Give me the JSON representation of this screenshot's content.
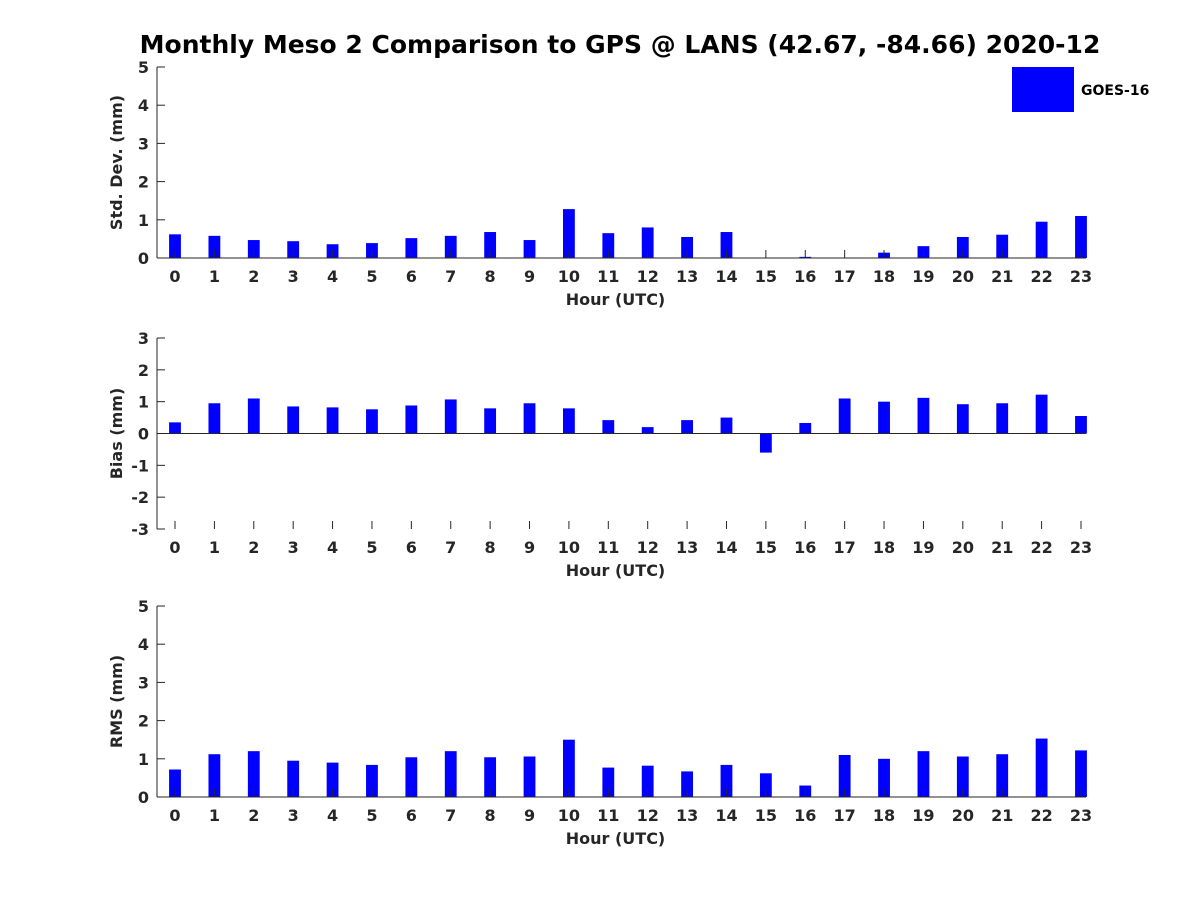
{
  "title": "Monthly Meso 2 Comparison to GPS @ LANS (42.67, -84.66) 2020-12",
  "legend": {
    "label": "GOES-16",
    "placement": "top-right"
  },
  "colors": {
    "bar": "#0000ff",
    "axis": "#262626",
    "title": "#000000"
  },
  "chart_data": [
    {
      "type": "bar",
      "title": "",
      "xlabel": "Hour (UTC)",
      "ylabel": "Std. Dev. (mm)",
      "categories": [
        0,
        1,
        2,
        3,
        4,
        5,
        6,
        7,
        8,
        9,
        10,
        11,
        12,
        13,
        14,
        15,
        16,
        17,
        18,
        19,
        20,
        21,
        22,
        23
      ],
      "series": [
        {
          "name": "GOES-16",
          "values": [
            0.62,
            0.58,
            0.47,
            0.44,
            0.36,
            0.39,
            0.52,
            0.58,
            0.68,
            0.47,
            1.28,
            0.65,
            0.8,
            0.55,
            0.68,
            0.0,
            0.03,
            0.0,
            0.14,
            0.31,
            0.55,
            0.61,
            0.95,
            1.1
          ]
        }
      ],
      "ylim": [
        0,
        5
      ],
      "yticks": [
        0,
        1,
        2,
        3,
        4,
        5
      ],
      "grid": false
    },
    {
      "type": "bar",
      "title": "",
      "xlabel": "Hour (UTC)",
      "ylabel": "Bias (mm)",
      "categories": [
        0,
        1,
        2,
        3,
        4,
        5,
        6,
        7,
        8,
        9,
        10,
        11,
        12,
        13,
        14,
        15,
        16,
        17,
        18,
        19,
        20,
        21,
        22,
        23
      ],
      "series": [
        {
          "name": "GOES-16",
          "values": [
            0.35,
            0.95,
            1.1,
            0.85,
            0.82,
            0.76,
            0.88,
            1.07,
            0.79,
            0.95,
            0.79,
            0.42,
            0.2,
            0.42,
            0.5,
            -0.6,
            0.33,
            1.1,
            1.0,
            1.12,
            0.92,
            0.95,
            1.22,
            0.55
          ]
        }
      ],
      "ylim": [
        -3,
        3
      ],
      "yticks": [
        -3,
        -2,
        -1,
        0,
        1,
        2,
        3
      ],
      "grid": false
    },
    {
      "type": "bar",
      "title": "",
      "xlabel": "Hour (UTC)",
      "ylabel": "RMS (mm)",
      "categories": [
        0,
        1,
        2,
        3,
        4,
        5,
        6,
        7,
        8,
        9,
        10,
        11,
        12,
        13,
        14,
        15,
        16,
        17,
        18,
        19,
        20,
        21,
        22,
        23
      ],
      "series": [
        {
          "name": "GOES-16",
          "values": [
            0.72,
            1.12,
            1.2,
            0.95,
            0.9,
            0.84,
            1.04,
            1.2,
            1.04,
            1.06,
            1.5,
            0.77,
            0.82,
            0.67,
            0.84,
            0.62,
            0.3,
            1.1,
            1.0,
            1.2,
            1.06,
            1.12,
            1.53,
            1.22
          ]
        }
      ],
      "ylim": [
        0,
        5
      ],
      "yticks": [
        0,
        1,
        2,
        3,
        4,
        5
      ],
      "grid": false
    }
  ]
}
